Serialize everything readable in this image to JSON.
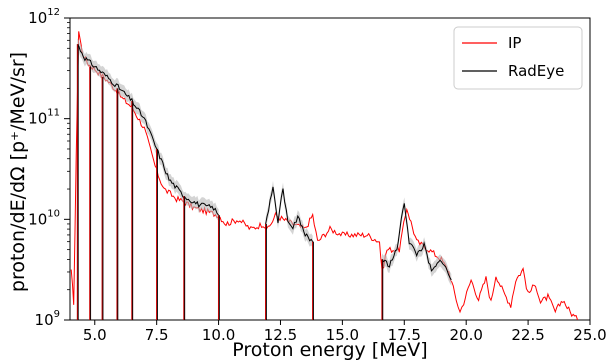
{
  "chart_data": {
    "type": "line",
    "title": "",
    "xlabel": "Proton energy [MeV]",
    "ylabel": "proton/dE/dΩ [p⁺/MeV/sr]",
    "xlim": [
      4.0,
      25.0
    ],
    "ylim": [
      1000000000.0,
      1000000000000.0
    ],
    "yscale": "log",
    "x_ticks": [
      "5.0",
      "7.5",
      "10.0",
      "12.5",
      "15.0",
      "17.5",
      "20.0",
      "22.5",
      "25.0"
    ],
    "y_ticks": [
      {
        "base": "10",
        "exp": "9"
      },
      {
        "base": "10",
        "exp": "10"
      },
      {
        "base": "10",
        "exp": "11"
      },
      {
        "base": "10",
        "exp": "12"
      }
    ],
    "legend": {
      "position": "top-right"
    },
    "series": [
      {
        "name": "IP",
        "color": "#ff0000",
        "x": [
          4.05,
          4.15,
          4.25,
          4.35,
          4.5,
          4.7,
          4.8,
          4.95,
          5.2,
          5.5,
          5.8,
          6.1,
          6.5,
          7.0,
          7.5,
          7.8,
          8.3,
          8.6,
          9.0,
          9.5,
          10.0,
          10.3,
          10.8,
          11.3,
          11.8,
          12.0,
          12.3,
          12.6,
          13.0,
          13.5,
          13.8,
          14.0,
          14.5,
          15.0,
          15.5,
          16.0,
          16.5,
          16.6,
          16.8,
          17.3,
          17.6,
          18.0,
          18.5,
          19.0,
          19.3,
          19.6,
          19.75,
          19.9,
          20.2,
          20.5,
          20.8,
          21.0,
          21.2,
          21.5,
          21.8,
          22.0,
          22.3,
          22.5,
          22.8,
          23.0,
          23.3,
          23.6,
          23.9,
          24.2,
          24.5
        ],
        "values": [
          3000000000.0,
          1500000000.0,
          40000000000.0,
          750000000000.0,
          450000000000.0,
          360000000000.0,
          340000000000.0,
          320000000000.0,
          280000000000.0,
          240000000000.0,
          200000000000.0,
          160000000000.0,
          130000000000.0,
          80000000000.0,
          30000000000.0,
          20000000000.0,
          16000000000.0,
          15000000000.0,
          13000000000.0,
          12000000000.0,
          11000000000.0,
          9000000000.0,
          10000000000.0,
          8000000000.0,
          9000000000.0,
          8000000000.0,
          11000000000.0,
          10000000000.0,
          9000000000.0,
          8000000000.0,
          11000000000.0,
          6000000000.0,
          8000000000.0,
          7000000000.0,
          7000000000.0,
          7000000000.0,
          6000000000.0,
          3000000000.0,
          5000000000.0,
          5000000000.0,
          13000000000.0,
          6000000000.0,
          5000000000.0,
          4000000000.0,
          3000000000.0,
          1600000000.0,
          1200000000.0,
          1500000000.0,
          2500000000.0,
          1600000000.0,
          2600000000.0,
          1500000000.0,
          2800000000.0,
          1900000000.0,
          1400000000.0,
          2500000000.0,
          3200000000.0,
          1800000000.0,
          2300000000.0,
          1500000000.0,
          1700000000.0,
          1200000000.0,
          1600000000.0,
          1200000000.0,
          1000000000.0
        ]
      },
      {
        "name": "RadEye",
        "color": "#000000",
        "x": [
          4.3,
          4.6,
          5.0,
          5.5,
          6.0,
          6.5,
          7.0,
          7.5,
          8.0,
          8.6,
          9.2,
          9.8,
          10.0,
          11.9,
          12.2,
          12.4,
          12.6,
          12.8,
          13.0,
          13.2,
          13.5,
          13.8,
          16.6,
          16.9,
          17.2,
          17.5,
          17.7,
          18.0,
          18.3,
          18.6,
          19.0,
          19.4
        ],
        "values": [
          550000000000.0,
          400000000000.0,
          330000000000.0,
          260000000000.0,
          200000000000.0,
          150000000000.0,
          100000000000.0,
          50000000000.0,
          25000000000.0,
          17000000000.0,
          14000000000.0,
          13000000000.0,
          11000000000.0,
          9000000000.0,
          22000000000.0,
          9000000000.0,
          21000000000.0,
          9000000000.0,
          8000000000.0,
          11000000000.0,
          7000000000.0,
          6000000000.0,
          4000000000.0,
          3500000000.0,
          5000000000.0,
          15000000000.0,
          6000000000.0,
          4500000000.0,
          5500000000.0,
          3000000000.0,
          4000000000.0,
          2500000000.0
        ],
        "dips": [
          4.3,
          4.8,
          5.3,
          5.9,
          6.5,
          7.5,
          8.6,
          10.0,
          11.9,
          13.8,
          16.6
        ]
      }
    ]
  }
}
